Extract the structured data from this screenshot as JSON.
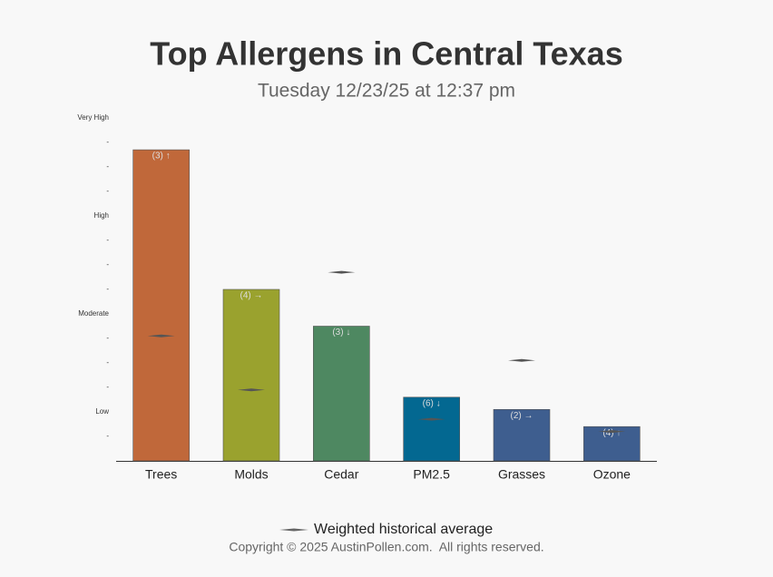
{
  "chart_data": {
    "type": "bar",
    "title": "Top Allergens in Central Texas",
    "subtitle": "Tuesday 12/23/25 at 12:37 pm",
    "categories": [
      "Trees",
      "Molds",
      "Cedar",
      "PM2.5",
      "Grasses",
      "Ozone"
    ],
    "values": [
      12.7,
      7.0,
      5.5,
      2.6,
      2.1,
      1.4
    ],
    "colors": [
      "#c0683a",
      "#9aa22e",
      "#4e8861",
      "#036891",
      "#3e5e8f",
      "#3e5e8f"
    ],
    "bar_labels": [
      "(3) ↑",
      "(4) →",
      "(3) ↓",
      "(6) ↓",
      "(2) →",
      "(4) ↑"
    ],
    "average_values": [
      5.1,
      2.9,
      7.7,
      1.7,
      4.1,
      1.2
    ],
    "average_label": "Weighted historical average",
    "ylim": [
      0,
      14
    ],
    "yticks": [
      {
        "value": 1,
        "label": "-"
      },
      {
        "value": 2,
        "label": "Low"
      },
      {
        "value": 3,
        "label": "-"
      },
      {
        "value": 4,
        "label": "-"
      },
      {
        "value": 5,
        "label": "-"
      },
      {
        "value": 6,
        "label": "Moderate"
      },
      {
        "value": 7,
        "label": "-"
      },
      {
        "value": 8,
        "label": "-"
      },
      {
        "value": 9,
        "label": "-"
      },
      {
        "value": 10,
        "label": "High"
      },
      {
        "value": 11,
        "label": "-"
      },
      {
        "value": 12,
        "label": "-"
      },
      {
        "value": 13,
        "label": "-"
      },
      {
        "value": 14,
        "label": "Very High"
      }
    ],
    "grid": false,
    "footer": "Copyright © 2025 AustinPollen.com.  All rights reserved."
  }
}
